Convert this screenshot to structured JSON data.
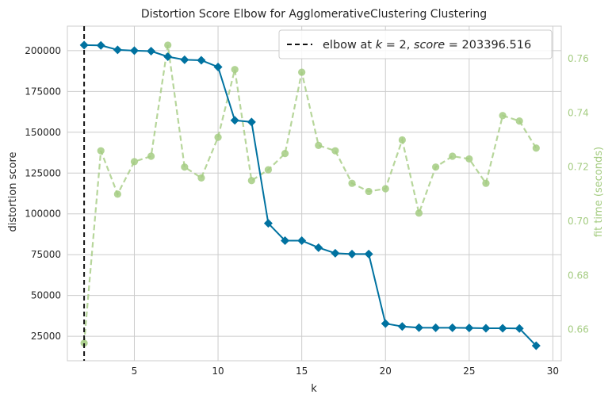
{
  "chart_data": {
    "type": "line",
    "title": "Distortion Score Elbow for AgglomerativeClustering Clustering",
    "xlabel": "k",
    "ylabel": "distortion score",
    "y2label": "fit time (seconds)",
    "xlim": [
      1,
      30.5
    ],
    "ylim": [
      10000,
      215000
    ],
    "y2lim": [
      0.6485,
      0.772
    ],
    "xticks": [
      5,
      10,
      15,
      20,
      25,
      30
    ],
    "yticks": [
      25000,
      50000,
      75000,
      100000,
      125000,
      150000,
      175000,
      200000
    ],
    "y2ticks": [
      0.66,
      0.68,
      0.7,
      0.72,
      0.74,
      0.76
    ],
    "y2tick_labels": [
      "0.66",
      "0.68",
      "0.70",
      "0.72",
      "0.74",
      "0.76"
    ],
    "grid": true,
    "legend_position": "top-right",
    "legend_label": "elbow at $k=2$, $score=203396.516$",
    "elbow_k": 2,
    "series": [
      {
        "name": "distortion score",
        "axis": "left",
        "color": "#0072a0",
        "marker": "diamond",
        "x": [
          2,
          3,
          4,
          5,
          6,
          7,
          8,
          9,
          10,
          11,
          12,
          13,
          14,
          15,
          16,
          17,
          18,
          19,
          20,
          21,
          22,
          23,
          24,
          25,
          26,
          27,
          28,
          29
        ],
        "values": [
          203397,
          203200,
          200500,
          200000,
          199700,
          196300,
          194400,
          194100,
          190000,
          157300,
          156300,
          94200,
          83600,
          83600,
          79300,
          75900,
          75400,
          75400,
          32800,
          31000,
          30300,
          30200,
          30200,
          30100,
          29900,
          29900,
          29800,
          19200
        ]
      },
      {
        "name": "fit time (seconds)",
        "axis": "right",
        "color": "#a5cc82",
        "marker": "circle",
        "linestyle": "dashed",
        "x": [
          2,
          3,
          4,
          5,
          6,
          7,
          8,
          9,
          10,
          11,
          12,
          13,
          14,
          15,
          16,
          17,
          18,
          19,
          20,
          21,
          22,
          23,
          24,
          25,
          26,
          27,
          28,
          29
        ],
        "values": [
          0.655,
          0.726,
          0.71,
          0.722,
          0.724,
          0.765,
          0.72,
          0.716,
          0.731,
          0.756,
          0.715,
          0.719,
          0.725,
          0.755,
          0.728,
          0.726,
          0.714,
          0.711,
          0.712,
          0.73,
          0.703,
          0.72,
          0.724,
          0.723,
          0.714,
          0.739,
          0.737,
          0.727
        ]
      }
    ]
  }
}
